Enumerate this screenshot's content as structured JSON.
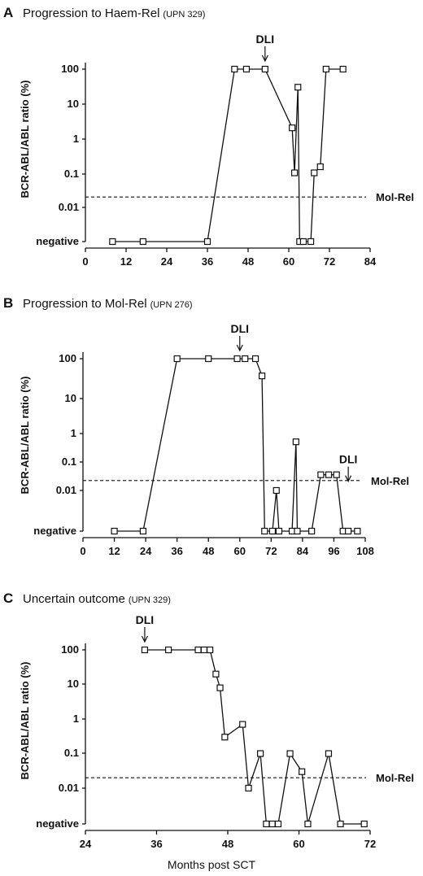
{
  "chart_data": [
    {
      "type": "line",
      "letter": "A",
      "title": "Progression to Haem-Rel",
      "subtitle": "(UPN 329)",
      "ylabel": "BCR-ABL/ABL ratio (%)",
      "xlabel": "",
      "y_scale": "log",
      "ytick_labels": [
        "negative",
        "0.01",
        "0.1",
        "1",
        "10",
        "100"
      ],
      "xticks": [
        0,
        12,
        24,
        36,
        48,
        60,
        72,
        84
      ],
      "xlim": [
        0,
        84
      ],
      "threshold": {
        "label": "Mol-Rel",
        "value": 0.02
      },
      "annotations": [
        {
          "text": "DLI",
          "x": 53
        }
      ],
      "points": [
        {
          "x": 8,
          "y": "negative"
        },
        {
          "x": 17,
          "y": "negative"
        },
        {
          "x": 36,
          "y": "negative"
        },
        {
          "x": 44,
          "y": 100
        },
        {
          "x": 47.5,
          "y": 100
        },
        {
          "x": 53,
          "y": 100
        },
        {
          "x": 61,
          "y": 2
        },
        {
          "x": 61.7,
          "y": 0.1
        },
        {
          "x": 62.7,
          "y": 30
        },
        {
          "x": 63.2,
          "y": "negative"
        },
        {
          "x": 64.3,
          "y": "negative"
        },
        {
          "x": 66.5,
          "y": "negative"
        },
        {
          "x": 67.5,
          "y": 0.1
        },
        {
          "x": 69.3,
          "y": 0.15
        },
        {
          "x": 71,
          "y": 100
        },
        {
          "x": 76,
          "y": 100
        }
      ]
    },
    {
      "type": "line",
      "letter": "B",
      "title": "Progression to Mol-Rel",
      "subtitle": "(UPN 276)",
      "ylabel": "BCR-ABL/ABL ratio (%)",
      "xlabel": "",
      "y_scale": "log",
      "ytick_labels": [
        "negative",
        "0.01",
        "0.1",
        "1",
        "10",
        "100"
      ],
      "xticks": [
        0,
        12,
        24,
        36,
        48,
        60,
        72,
        84,
        96,
        108
      ],
      "xlim": [
        0,
        108
      ],
      "threshold": {
        "label": "Mol-Rel",
        "value": 0.02
      },
      "annotations": [
        {
          "text": "DLI",
          "x": 60
        },
        {
          "text": "DLI",
          "x": 101.5
        }
      ],
      "points": [
        {
          "x": 12,
          "y": "negative"
        },
        {
          "x": 23,
          "y": "negative"
        },
        {
          "x": 36,
          "y": 100
        },
        {
          "x": 48,
          "y": 100
        },
        {
          "x": 59,
          "y": 100
        },
        {
          "x": 62,
          "y": 100
        },
        {
          "x": 66,
          "y": 100
        },
        {
          "x": 68.5,
          "y": 30
        },
        {
          "x": 69.5,
          "y": "negative"
        },
        {
          "x": 72.5,
          "y": "negative"
        },
        {
          "x": 74,
          "y": 0.01
        },
        {
          "x": 75,
          "y": "negative"
        },
        {
          "x": 80,
          "y": "negative"
        },
        {
          "x": 81.5,
          "y": 0.3
        },
        {
          "x": 82,
          "y": "negative"
        },
        {
          "x": 87.5,
          "y": "negative"
        },
        {
          "x": 91,
          "y": 0.03
        },
        {
          "x": 94,
          "y": 0.03
        },
        {
          "x": 97,
          "y": 0.03
        },
        {
          "x": 99.5,
          "y": "negative"
        },
        {
          "x": 101.5,
          "y": "negative"
        },
        {
          "x": 105,
          "y": "negative"
        }
      ]
    },
    {
      "type": "line",
      "letter": "C",
      "title": "Uncertain outcome",
      "subtitle": "(UPN 329)",
      "ylabel": "BCR-ABL/ABL ratio (%)",
      "xlabel": "Months post SCT",
      "y_scale": "log",
      "ytick_labels": [
        "negative",
        "0.01",
        "0.1",
        "1",
        "10",
        "100"
      ],
      "xticks": [
        24,
        36,
        48,
        60,
        72
      ],
      "xlim": [
        24,
        72
      ],
      "threshold": {
        "label": "Mol-Rel",
        "value": 0.02
      },
      "annotations": [
        {
          "text": "DLI",
          "x": 34
        }
      ],
      "points": [
        {
          "x": 34,
          "y": 100
        },
        {
          "x": 38,
          "y": 100
        },
        {
          "x": 43,
          "y": 100
        },
        {
          "x": 44,
          "y": 100
        },
        {
          "x": 45,
          "y": 100
        },
        {
          "x": 46,
          "y": 20
        },
        {
          "x": 46.7,
          "y": 8
        },
        {
          "x": 47.5,
          "y": 0.3
        },
        {
          "x": 50.5,
          "y": 0.7
        },
        {
          "x": 51.5,
          "y": 0.01
        },
        {
          "x": 53.5,
          "y": 0.1
        },
        {
          "x": 54.5,
          "y": "negative"
        },
        {
          "x": 55.5,
          "y": "negative"
        },
        {
          "x": 56.5,
          "y": "negative"
        },
        {
          "x": 58.5,
          "y": 0.1
        },
        {
          "x": 60.5,
          "y": 0.03
        },
        {
          "x": 61.5,
          "y": "negative"
        },
        {
          "x": 65,
          "y": 0.1
        },
        {
          "x": 67,
          "y": "negative"
        },
        {
          "x": 71,
          "y": "negative"
        }
      ]
    }
  ]
}
